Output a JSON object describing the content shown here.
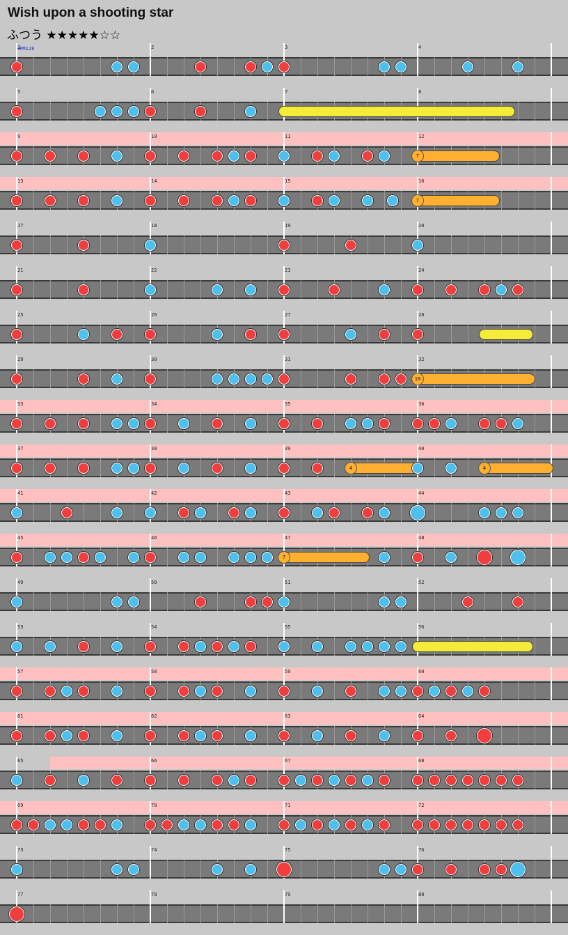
{
  "title": "Wish upon a shooting star",
  "difficulty": "ふつう ★★★★★☆☆",
  "bpm_label": "BPM128",
  "note_types": {
    "don": "red",
    "ka": "blue",
    "big-don": "red",
    "big-ka": "blue"
  },
  "colors": {
    "don": "#f03e3e",
    "ka": "#4ec0ee",
    "drumroll": "#ffb030",
    "balloon": "#f4ec38",
    "gogo": "#ffc0c0"
  },
  "rows": [
    {
      "measures": [
        1,
        2,
        3,
        4
      ],
      "gogo": false,
      "notes": [
        [
          0,
          "d"
        ],
        [
          6,
          "k"
        ],
        [
          7,
          "k"
        ],
        [
          11,
          "d"
        ],
        [
          14,
          "d"
        ],
        [
          15,
          "k"
        ],
        [
          16,
          "d"
        ],
        [
          22,
          "k"
        ],
        [
          23,
          "k"
        ],
        [
          27,
          "k"
        ],
        [
          30,
          "k"
        ]
      ]
    },
    {
      "measures": [
        5,
        6,
        7,
        8
      ],
      "gogo": false,
      "notes": [
        [
          0,
          "d"
        ],
        [
          5,
          "k"
        ],
        [
          6,
          "k"
        ],
        [
          7,
          "k"
        ],
        [
          8,
          "d"
        ],
        [
          11,
          "d"
        ],
        [
          14,
          "k"
        ]
      ],
      "rolls": [
        [
          16,
          29.5
        ]
      ]
    },
    {
      "measures": [
        9,
        10,
        11,
        12
      ],
      "gogo": true,
      "notes": [
        [
          0,
          "d"
        ],
        [
          2,
          "d"
        ],
        [
          4,
          "d"
        ],
        [
          6,
          "k"
        ],
        [
          8,
          "d"
        ],
        [
          10,
          "d"
        ],
        [
          12,
          "d"
        ],
        [
          13,
          "k"
        ],
        [
          14,
          "d"
        ],
        [
          16,
          "k"
        ],
        [
          18,
          "d"
        ],
        [
          19,
          "k"
        ],
        [
          21,
          "d"
        ],
        [
          22,
          "k"
        ]
      ],
      "drumrolls": [
        [
          24,
          28.6,
          "7"
        ]
      ]
    },
    {
      "measures": [
        13,
        14,
        15,
        16
      ],
      "gogo": true,
      "notes": [
        [
          0,
          "d"
        ],
        [
          2,
          "d"
        ],
        [
          4,
          "d"
        ],
        [
          6,
          "k"
        ],
        [
          8,
          "d"
        ],
        [
          10,
          "d"
        ],
        [
          12,
          "d"
        ],
        [
          13,
          "k"
        ],
        [
          14,
          "d"
        ],
        [
          16,
          "k"
        ],
        [
          18,
          "d"
        ],
        [
          19,
          "k"
        ],
        [
          21,
          "k"
        ],
        [
          22.5,
          "k"
        ]
      ],
      "drumrolls": [
        [
          24,
          28.6,
          "7"
        ]
      ]
    },
    {
      "measures": [
        17,
        18,
        19,
        20
      ],
      "gogo": false,
      "notes": [
        [
          0,
          "d"
        ],
        [
          4,
          "d"
        ],
        [
          8,
          "k"
        ],
        [
          16,
          "d"
        ],
        [
          20,
          "d"
        ],
        [
          24,
          "k"
        ]
      ]
    },
    {
      "measures": [
        21,
        22,
        23,
        24
      ],
      "gogo": false,
      "notes": [
        [
          0,
          "d"
        ],
        [
          4,
          "d"
        ],
        [
          8,
          "k"
        ],
        [
          12,
          "k"
        ],
        [
          14,
          "k"
        ],
        [
          16,
          "d"
        ],
        [
          19,
          "d"
        ],
        [
          22,
          "k"
        ],
        [
          24,
          "d"
        ],
        [
          26,
          "d"
        ],
        [
          28,
          "d"
        ],
        [
          29,
          "k"
        ],
        [
          30,
          "d"
        ]
      ]
    },
    {
      "measures": [
        25,
        26,
        27,
        28
      ],
      "gogo": false,
      "notes": [
        [
          0,
          "d"
        ],
        [
          4,
          "k"
        ],
        [
          6,
          "d"
        ],
        [
          8,
          "d"
        ],
        [
          12,
          "k"
        ],
        [
          14,
          "d"
        ],
        [
          16,
          "d"
        ],
        [
          20,
          "k"
        ],
        [
          22,
          "d"
        ],
        [
          24,
          "d"
        ]
      ],
      "rolls": [
        [
          28,
          30.6
        ]
      ]
    },
    {
      "measures": [
        29,
        30,
        31,
        32
      ],
      "gogo": false,
      "notes": [
        [
          0,
          "d"
        ],
        [
          4,
          "d"
        ],
        [
          6,
          "k"
        ],
        [
          8,
          "d"
        ],
        [
          12,
          "k"
        ],
        [
          13,
          "k"
        ],
        [
          14,
          "k"
        ],
        [
          15,
          "k"
        ],
        [
          16,
          "d"
        ],
        [
          20,
          "d"
        ],
        [
          22,
          "d"
        ],
        [
          23,
          "d"
        ]
      ],
      "drumrolls": [
        [
          24,
          30.7,
          "10"
        ]
      ]
    },
    {
      "measures": [
        33,
        34,
        35,
        36
      ],
      "gogo": true,
      "notes": [
        [
          0,
          "d"
        ],
        [
          2,
          "d"
        ],
        [
          4,
          "d"
        ],
        [
          6,
          "k"
        ],
        [
          7,
          "k"
        ],
        [
          8,
          "d"
        ],
        [
          10,
          "k"
        ],
        [
          12,
          "d"
        ],
        [
          14,
          "k"
        ],
        [
          16,
          "d"
        ],
        [
          18,
          "d"
        ],
        [
          20,
          "k"
        ],
        [
          21,
          "k"
        ],
        [
          22,
          "d"
        ],
        [
          24,
          "d"
        ],
        [
          25,
          "d"
        ],
        [
          26,
          "k"
        ],
        [
          28,
          "d"
        ],
        [
          29,
          "d"
        ],
        [
          30,
          "k"
        ]
      ]
    },
    {
      "measures": [
        37,
        38,
        39,
        40
      ],
      "gogo": true,
      "notes": [
        [
          0,
          "d"
        ],
        [
          2,
          "d"
        ],
        [
          4,
          "d"
        ],
        [
          6,
          "k"
        ],
        [
          7,
          "k"
        ],
        [
          8,
          "d"
        ],
        [
          10,
          "k"
        ],
        [
          12,
          "d"
        ],
        [
          14,
          "k"
        ],
        [
          16,
          "d"
        ],
        [
          18,
          "d"
        ],
        [
          24,
          "k"
        ],
        [
          26,
          "k"
        ]
      ],
      "drumrolls": [
        [
          20,
          23.8,
          "4"
        ],
        [
          28,
          31.8,
          "4"
        ]
      ]
    },
    {
      "measures": [
        41,
        42,
        43,
        44
      ],
      "gogo": true,
      "notes": [
        [
          0,
          "k"
        ],
        [
          3,
          "d"
        ],
        [
          6,
          "k"
        ],
        [
          8,
          "k"
        ],
        [
          10,
          "d"
        ],
        [
          11,
          "k"
        ],
        [
          13,
          "d"
        ],
        [
          14,
          "k"
        ],
        [
          16,
          "d"
        ],
        [
          18,
          "k"
        ],
        [
          19,
          "d"
        ],
        [
          21,
          "d"
        ],
        [
          22,
          "k"
        ],
        [
          24,
          "K"
        ],
        [
          28,
          "k"
        ],
        [
          29,
          "k"
        ],
        [
          30,
          "k"
        ]
      ]
    },
    {
      "measures": [
        45,
        46,
        47,
        48
      ],
      "gogo": true,
      "notes": [
        [
          0,
          "d"
        ],
        [
          2,
          "k"
        ],
        [
          3,
          "k"
        ],
        [
          4,
          "d"
        ],
        [
          5,
          "k"
        ],
        [
          7,
          "k"
        ],
        [
          8,
          "d"
        ],
        [
          10,
          "k"
        ],
        [
          11,
          "k"
        ],
        [
          13,
          "k"
        ],
        [
          14,
          "k"
        ],
        [
          15,
          "k"
        ],
        [
          22,
          "k"
        ],
        [
          24,
          "d"
        ],
        [
          26,
          "k"
        ],
        [
          28,
          "D"
        ],
        [
          30,
          "K"
        ]
      ],
      "drumrolls": [
        [
          16,
          20.8,
          "7"
        ]
      ]
    },
    {
      "measures": [
        49,
        50,
        51,
        52
      ],
      "gogo": false,
      "notes": [
        [
          0,
          "k"
        ],
        [
          6,
          "k"
        ],
        [
          7,
          "k"
        ],
        [
          11,
          "d"
        ],
        [
          14,
          "d"
        ],
        [
          15,
          "d"
        ],
        [
          16,
          "k"
        ],
        [
          22,
          "k"
        ],
        [
          23,
          "k"
        ],
        [
          27,
          "d"
        ],
        [
          30,
          "d"
        ]
      ]
    },
    {
      "measures": [
        53,
        54,
        55,
        56
      ],
      "gogo": false,
      "notes": [
        [
          0,
          "k"
        ],
        [
          2,
          "k"
        ],
        [
          4,
          "d"
        ],
        [
          6,
          "k"
        ],
        [
          8,
          "d"
        ],
        [
          10,
          "d"
        ],
        [
          11,
          "k"
        ],
        [
          12,
          "d"
        ],
        [
          13,
          "k"
        ],
        [
          14,
          "d"
        ],
        [
          16,
          "k"
        ],
        [
          18,
          "k"
        ],
        [
          20,
          "k"
        ],
        [
          21,
          "k"
        ],
        [
          22,
          "k"
        ],
        [
          23,
          "k"
        ]
      ],
      "rolls": [
        [
          24,
          30.6
        ]
      ]
    },
    {
      "measures": [
        57,
        58,
        59,
        60
      ],
      "gogo": true,
      "notes": [
        [
          0,
          "d"
        ],
        [
          2,
          "d"
        ],
        [
          3,
          "k"
        ],
        [
          4,
          "d"
        ],
        [
          6,
          "k"
        ],
        [
          8,
          "d"
        ],
        [
          10,
          "d"
        ],
        [
          11,
          "k"
        ],
        [
          12,
          "d"
        ],
        [
          14,
          "k"
        ],
        [
          16,
          "d"
        ],
        [
          18,
          "k"
        ],
        [
          20,
          "d"
        ],
        [
          22,
          "k"
        ],
        [
          23,
          "k"
        ],
        [
          24,
          "d"
        ],
        [
          25,
          "k"
        ],
        [
          26,
          "d"
        ],
        [
          27,
          "k"
        ],
        [
          28,
          "d"
        ]
      ]
    },
    {
      "measures": [
        61,
        62,
        63,
        64
      ],
      "gogo": true,
      "notes": [
        [
          0,
          "d"
        ],
        [
          2,
          "d"
        ],
        [
          3,
          "k"
        ],
        [
          4,
          "d"
        ],
        [
          6,
          "k"
        ],
        [
          8,
          "d"
        ],
        [
          10,
          "d"
        ],
        [
          11,
          "k"
        ],
        [
          12,
          "d"
        ],
        [
          14,
          "k"
        ],
        [
          16,
          "d"
        ],
        [
          18,
          "k"
        ],
        [
          20,
          "d"
        ],
        [
          22,
          "k"
        ],
        [
          24,
          "d"
        ],
        [
          26,
          "d"
        ],
        [
          28,
          "D"
        ]
      ]
    },
    {
      "measures": [
        65,
        66,
        67,
        68
      ],
      "gogo": true,
      "gogoStart": 2.5,
      "notes": [
        [
          0,
          "k"
        ],
        [
          2,
          "d"
        ],
        [
          4,
          "k"
        ],
        [
          6,
          "d"
        ],
        [
          8,
          "d"
        ],
        [
          10,
          "d"
        ],
        [
          12,
          "d"
        ],
        [
          13,
          "k"
        ],
        [
          14,
          "d"
        ],
        [
          16,
          "d"
        ],
        [
          17,
          "k"
        ],
        [
          18,
          "d"
        ],
        [
          19,
          "k"
        ],
        [
          20,
          "d"
        ],
        [
          21,
          "k"
        ],
        [
          22,
          "d"
        ],
        [
          24,
          "d"
        ],
        [
          25,
          "d"
        ],
        [
          26,
          "d"
        ],
        [
          27,
          "d"
        ],
        [
          28,
          "d"
        ],
        [
          29,
          "d"
        ],
        [
          30,
          "d"
        ]
      ]
    },
    {
      "measures": [
        69,
        70,
        71,
        72
      ],
      "gogo": true,
      "notes": [
        [
          0,
          "d"
        ],
        [
          1,
          "d"
        ],
        [
          2,
          "k"
        ],
        [
          3,
          "k"
        ],
        [
          4,
          "d"
        ],
        [
          5,
          "d"
        ],
        [
          6,
          "k"
        ],
        [
          8,
          "d"
        ],
        [
          9,
          "d"
        ],
        [
          10,
          "k"
        ],
        [
          11,
          "k"
        ],
        [
          12,
          "d"
        ],
        [
          13,
          "d"
        ],
        [
          14,
          "k"
        ],
        [
          16,
          "d"
        ],
        [
          17,
          "k"
        ],
        [
          18,
          "d"
        ],
        [
          19,
          "k"
        ],
        [
          20,
          "d"
        ],
        [
          21,
          "k"
        ],
        [
          22,
          "d"
        ],
        [
          24,
          "d"
        ],
        [
          25,
          "d"
        ],
        [
          26,
          "d"
        ],
        [
          27,
          "d"
        ],
        [
          28,
          "d"
        ],
        [
          29,
          "d"
        ],
        [
          30,
          "d"
        ]
      ]
    },
    {
      "measures": [
        73,
        74,
        75,
        76
      ],
      "gogo": false,
      "notes": [
        [
          0,
          "k"
        ],
        [
          6,
          "k"
        ],
        [
          7,
          "k"
        ],
        [
          12,
          "k"
        ],
        [
          14,
          "k"
        ],
        [
          16,
          "D"
        ],
        [
          22,
          "k"
        ],
        [
          23,
          "k"
        ],
        [
          24,
          "d"
        ],
        [
          26,
          "d"
        ],
        [
          28,
          "d"
        ],
        [
          29,
          "d"
        ],
        [
          30,
          "K"
        ]
      ]
    },
    {
      "measures": [
        77,
        78,
        79,
        80
      ],
      "gogo": false,
      "notes": [
        [
          0,
          "D"
        ]
      ]
    }
  ]
}
